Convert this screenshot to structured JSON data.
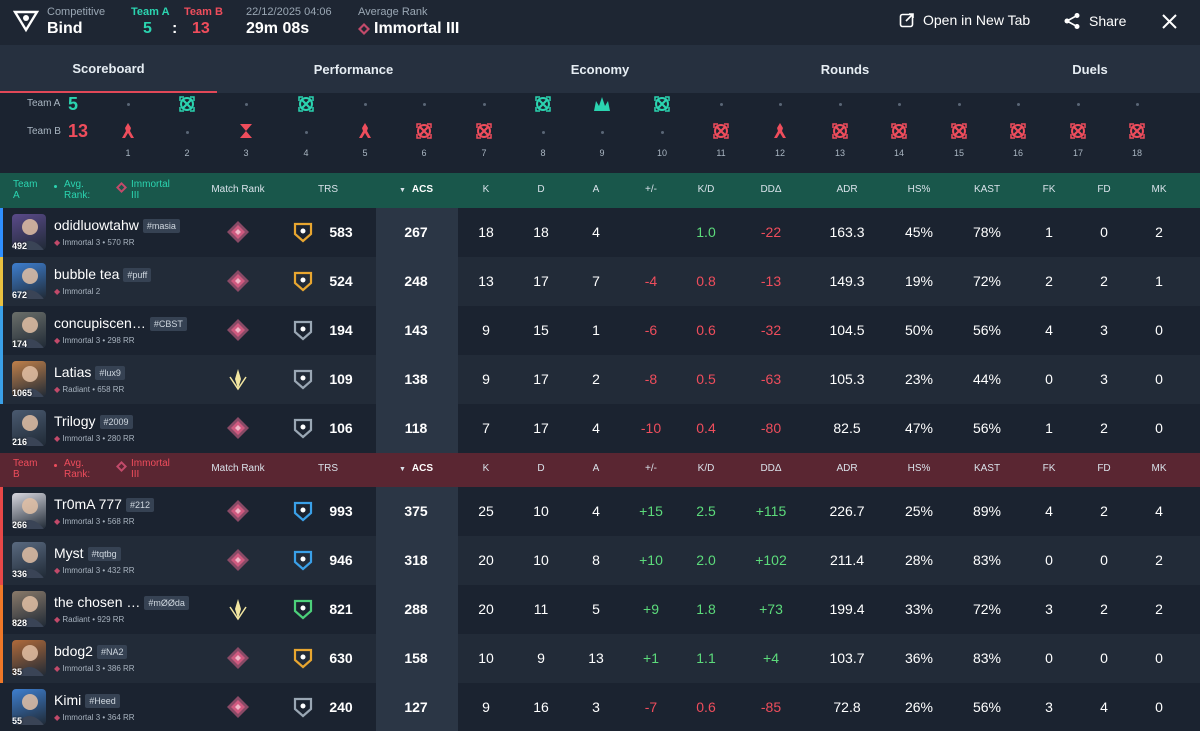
{
  "header": {
    "mode_label": "Competitive",
    "map": "Bind",
    "team_a_label": "Team A",
    "team_b_label": "Team B",
    "team_a_score": "5",
    "team_b_score": "13",
    "score_sep": ":",
    "datetime": "22/12/2025 04:06",
    "duration": "29m 08s",
    "avg_rank_label": "Average Rank",
    "avg_rank": "Immortal III",
    "open_tab": "Open in New Tab",
    "share": "Share"
  },
  "tabs": [
    "Scoreboard",
    "Performance",
    "Economy",
    "Rounds",
    "Duels"
  ],
  "timeline": {
    "team_a_label": "Team A",
    "team_b_label": "Team B",
    "team_a_score": "5",
    "team_b_score": "13",
    "rounds": [
      {
        "n": "1",
        "winner": "B",
        "type": "defuse-or-detonate"
      },
      {
        "n": "2",
        "winner": "A",
        "type": "elimination"
      },
      {
        "n": "3",
        "winner": "B",
        "type": "time"
      },
      {
        "n": "4",
        "winner": "A",
        "type": "elimination"
      },
      {
        "n": "5",
        "winner": "B",
        "type": "defuse-or-detonate"
      },
      {
        "n": "6",
        "winner": "B",
        "type": "elimination"
      },
      {
        "n": "7",
        "winner": "B",
        "type": "elimination"
      },
      {
        "n": "8",
        "winner": "A",
        "type": "elimination"
      },
      {
        "n": "9",
        "winner": "A",
        "type": "spike"
      },
      {
        "n": "10",
        "winner": "A",
        "type": "elimination"
      },
      {
        "n": "11",
        "winner": "B",
        "type": "elimination"
      },
      {
        "n": "12",
        "winner": "B",
        "type": "defuse-or-detonate"
      },
      {
        "n": "13",
        "winner": "B",
        "type": "elimination"
      },
      {
        "n": "14",
        "winner": "B",
        "type": "elimination"
      },
      {
        "n": "15",
        "winner": "B",
        "type": "elimination"
      },
      {
        "n": "16",
        "winner": "B",
        "type": "elimination"
      },
      {
        "n": "17",
        "winner": "B",
        "type": "elimination"
      },
      {
        "n": "18",
        "winner": "B",
        "type": "elimination"
      }
    ]
  },
  "columns": [
    "Match Rank",
    "TRS",
    "ACS",
    "K",
    "D",
    "A",
    "+/-",
    "K/D",
    "DDΔ",
    "ADR",
    "HS%",
    "KAST",
    "FK",
    "FD",
    "MK"
  ],
  "team_a_header": {
    "team": "Team A",
    "avg_label": "Avg. Rank:",
    "avg_rank": "Immortal III"
  },
  "team_b_header": {
    "team": "Team B",
    "avg_label": "Avg. Rank:",
    "avg_rank": "Immortal III"
  },
  "team_a_players": [
    {
      "name": "odidluowtahw",
      "tag": "#masia",
      "rank": "Immortal 3 • 570 RR",
      "rr": "492",
      "trs": "583",
      "acs": "267",
      "k": "18",
      "d": "18",
      "a": "4",
      "pm": "",
      "kd": "1.0",
      "dd": "-22",
      "adr": "163.3",
      "hs": "45%",
      "kast": "78%",
      "fk": "1",
      "fd": "0",
      "mk": "2",
      "strip": "#2f8fff",
      "trs_color": "#e8a630",
      "kd_color": "pos",
      "avatar_color": "#5a4a8a"
    },
    {
      "name": "bubble tea",
      "tag": "#puff",
      "rank": "Immortal 2",
      "rr": "672",
      "trs": "524",
      "acs": "248",
      "k": "13",
      "d": "17",
      "a": "7",
      "pm": "-4",
      "kd": "0.8",
      "dd": "-13",
      "adr": "149.3",
      "hs": "19%",
      "kast": "72%",
      "fk": "2",
      "fd": "2",
      "mk": "1",
      "strip": "#e8c040",
      "trs_color": "#e8a630",
      "kd_color": "neg",
      "avatar_color": "#3e7fd0"
    },
    {
      "name": "concupiscen…",
      "tag": "#CBST",
      "rank": "Immortal 3 • 298 RR",
      "rr": "174",
      "trs": "194",
      "acs": "143",
      "k": "9",
      "d": "15",
      "a": "1",
      "pm": "-6",
      "kd": "0.6",
      "dd": "-32",
      "adr": "104.5",
      "hs": "50%",
      "kast": "56%",
      "fk": "4",
      "fd": "3",
      "mk": "0",
      "strip": "#3aa0e8",
      "trs_color": "#9aa7b4",
      "kd_color": "neg",
      "avatar_color": "#6b6f6a"
    },
    {
      "name": "Latias",
      "tag": "#lux9",
      "rank": "Radiant • 658 RR",
      "rr": "1065",
      "trs": "109",
      "acs": "138",
      "k": "9",
      "d": "17",
      "a": "2",
      "pm": "-8",
      "kd": "0.5",
      "dd": "-63",
      "adr": "105.3",
      "hs": "23%",
      "kast": "44%",
      "fk": "0",
      "fd": "3",
      "mk": "0",
      "strip": "#3aa0e8",
      "trs_color": "#9aa7b4",
      "kd_color": "neg",
      "avatar_color": "#c0804a"
    },
    {
      "name": "Trilogy",
      "tag": "#2009",
      "rank": "Immortal 3 • 280 RR",
      "rr": "216",
      "trs": "106",
      "acs": "118",
      "k": "7",
      "d": "17",
      "a": "4",
      "pm": "-10",
      "kd": "0.4",
      "dd": "-80",
      "adr": "82.5",
      "hs": "47%",
      "kast": "56%",
      "fk": "1",
      "fd": "2",
      "mk": "0",
      "strip": "#1b2330",
      "trs_color": "#9aa7b4",
      "kd_color": "neg",
      "avatar_color": "#4a5a70"
    }
  ],
  "team_b_players": [
    {
      "name": "Tr0mA 777",
      "tag": "#212",
      "rank": "Immortal 3 • 568 RR",
      "rr": "266",
      "trs": "993",
      "acs": "375",
      "k": "25",
      "d": "10",
      "a": "4",
      "pm": "+15",
      "kd": "2.5",
      "dd": "+115",
      "adr": "226.7",
      "hs": "25%",
      "kast": "89%",
      "fk": "4",
      "fd": "2",
      "mk": "4",
      "strip": "#e84848",
      "trs_color": "#3aa0e8",
      "kd_color": "pos",
      "avatar_color": "#d8d8e0"
    },
    {
      "name": "Myst",
      "tag": "#tqtbg",
      "rank": "Immortal 3 • 432 RR",
      "rr": "336",
      "trs": "946",
      "acs": "318",
      "k": "20",
      "d": "10",
      "a": "8",
      "pm": "+10",
      "kd": "2.0",
      "dd": "+102",
      "adr": "211.4",
      "hs": "28%",
      "kast": "83%",
      "fk": "0",
      "fd": "0",
      "mk": "2",
      "strip": "#e84848",
      "trs_color": "#3aa0e8",
      "kd_color": "pos",
      "avatar_color": "#5a6a80"
    },
    {
      "name": "the chosen …",
      "tag": "#mØØda",
      "rank": "Radiant • 929 RR",
      "rr": "828",
      "trs": "821",
      "acs": "288",
      "k": "20",
      "d": "11",
      "a": "5",
      "pm": "+9",
      "kd": "1.8",
      "dd": "+73",
      "adr": "199.4",
      "hs": "33%",
      "kast": "72%",
      "fk": "3",
      "fd": "2",
      "mk": "2",
      "strip": "#f07828",
      "trs_color": "#4cd07a",
      "kd_color": "pos",
      "avatar_color": "#8a7a6a"
    },
    {
      "name": "bdog2",
      "tag": "#NA2",
      "rank": "Immortal 3 • 386 RR",
      "rr": "35",
      "trs": "630",
      "acs": "158",
      "k": "10",
      "d": "9",
      "a": "13",
      "pm": "+1",
      "kd": "1.1",
      "dd": "+4",
      "adr": "103.7",
      "hs": "36%",
      "kast": "83%",
      "fk": "0",
      "fd": "0",
      "mk": "0",
      "strip": "#f07828",
      "trs_color": "#e8a630",
      "kd_color": "pos",
      "avatar_color": "#b06a3a"
    },
    {
      "name": "Kimi",
      "tag": "#Heed",
      "rank": "Immortal 3 • 364 RR",
      "rr": "55",
      "trs": "240",
      "acs": "127",
      "k": "9",
      "d": "16",
      "a": "3",
      "pm": "-7",
      "kd": "0.6",
      "dd": "-85",
      "adr": "72.8",
      "hs": "26%",
      "kast": "56%",
      "fk": "3",
      "fd": "4",
      "mk": "0",
      "strip": "#1b2330",
      "trs_color": "#9aa7b4",
      "kd_color": "neg",
      "avatar_color": "#3e7fd0"
    }
  ],
  "colors": {
    "team_a": "#2bd4b0",
    "team_b": "#ef4d5c",
    "positive": "#5cdb7b",
    "negative": "#ef4d5c",
    "rank_icon": "#c24a6a"
  }
}
